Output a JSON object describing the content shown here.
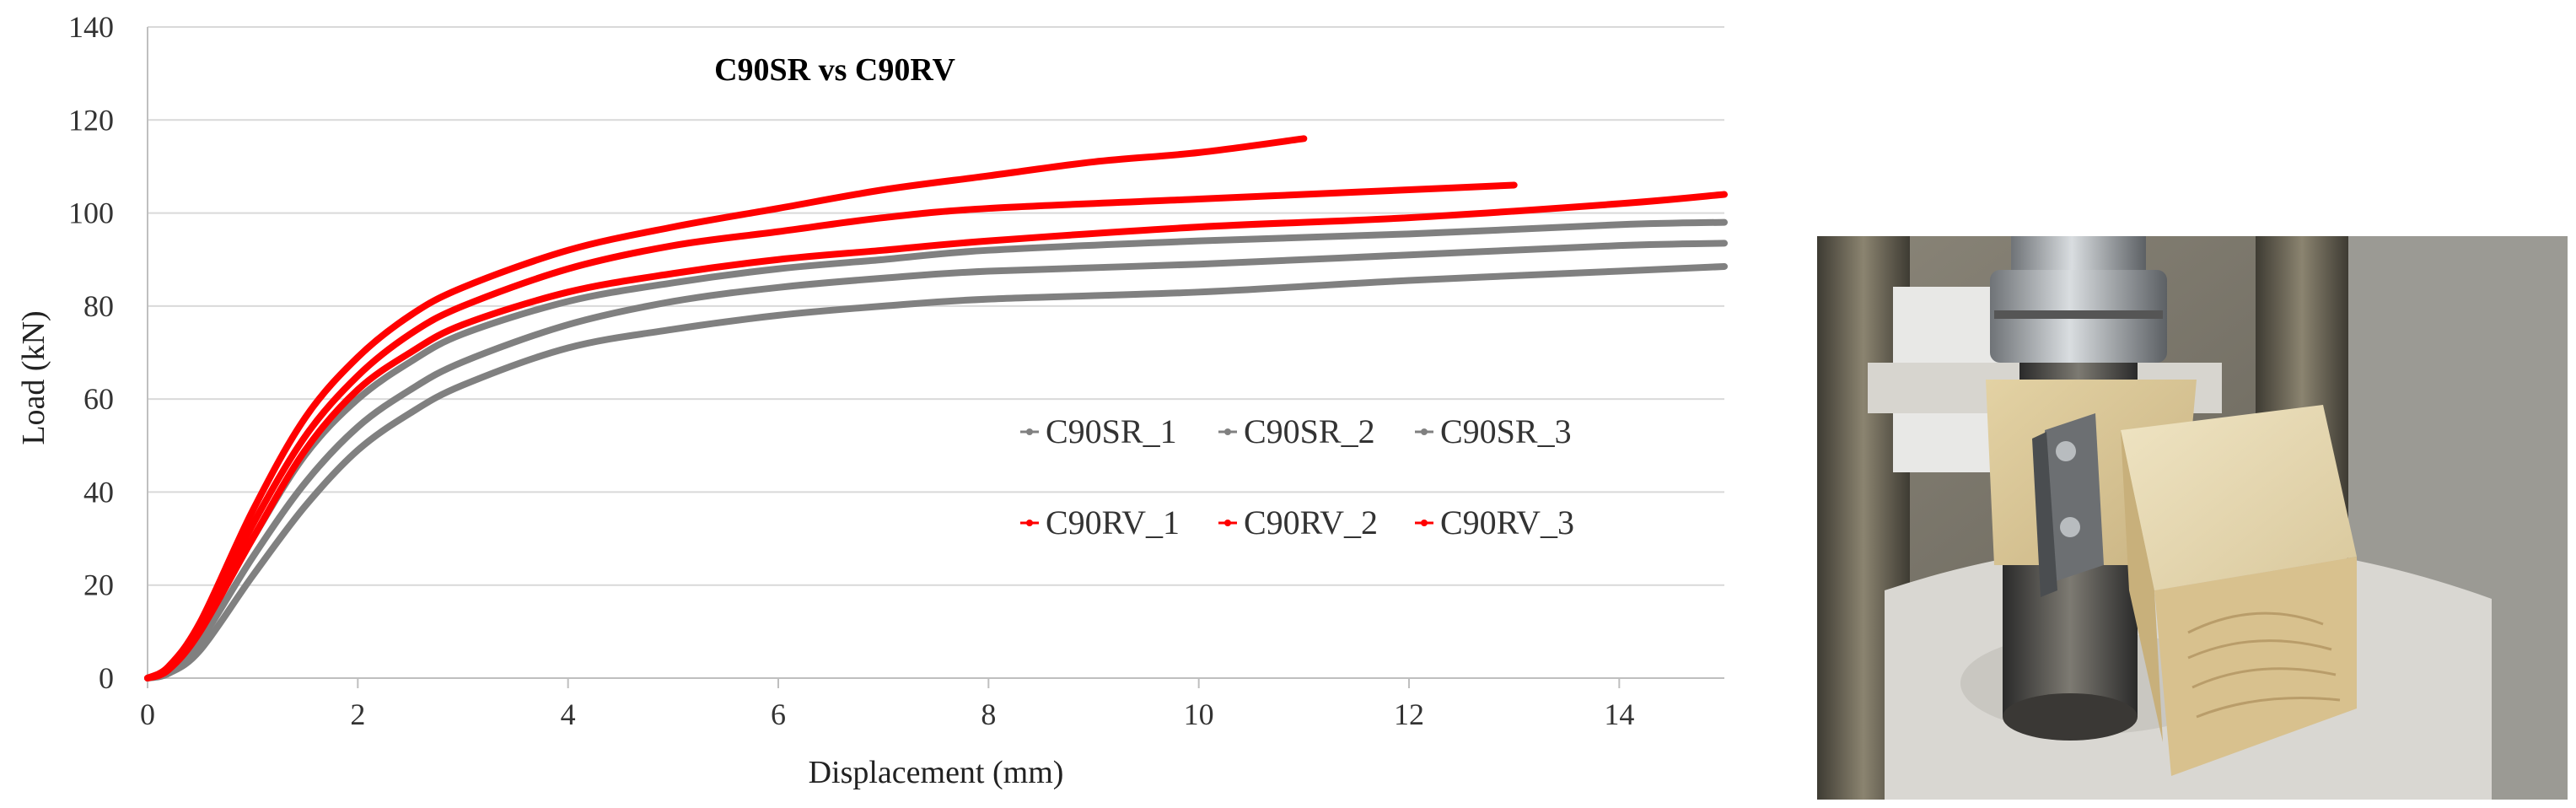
{
  "chart_data": {
    "type": "line",
    "title": "C90SR vs C90RV",
    "xlabel": "Displacement (mm)",
    "ylabel": "Load (kN)",
    "xlim": [
      0,
      15
    ],
    "ylim": [
      0,
      140
    ],
    "xticks": [
      0,
      2,
      4,
      6,
      8,
      10,
      12,
      14
    ],
    "yticks": [
      0,
      20,
      40,
      60,
      80,
      100,
      120,
      140
    ],
    "grid": "horizontal",
    "legend_position": "center-right",
    "colors": {
      "SR": "#808080",
      "RV": "#ff0000"
    },
    "series": [
      {
        "name": "C90SR_1",
        "color": "#808080",
        "x": [
          0,
          0.2,
          0.5,
          1.0,
          1.5,
          2.0,
          2.5,
          3.0,
          4.0,
          5.0,
          6.0,
          7.0,
          8.0,
          10.0,
          12.0,
          14.0,
          15.0
        ],
        "y": [
          0,
          2,
          10,
          30,
          48,
          60,
          68,
          74,
          81,
          85,
          88,
          90,
          92,
          94,
          95.5,
          97.5,
          98
        ]
      },
      {
        "name": "C90SR_2",
        "color": "#808080",
        "x": [
          0,
          0.2,
          0.5,
          1.0,
          1.5,
          2.0,
          2.5,
          3.0,
          4.0,
          5.0,
          6.0,
          7.0,
          8.0,
          10.0,
          12.0,
          14.0,
          15.0
        ],
        "y": [
          0,
          1.5,
          8,
          26,
          42,
          54,
          62,
          68,
          76,
          81,
          84,
          86,
          87.5,
          89,
          91,
          93,
          93.5
        ]
      },
      {
        "name": "C90SR_3",
        "color": "#808080",
        "x": [
          0,
          0.2,
          0.5,
          1.0,
          1.5,
          2.0,
          2.5,
          3.0,
          4.0,
          5.0,
          6.0,
          7.0,
          8.0,
          10.0,
          12.0,
          14.0,
          15.0
        ],
        "y": [
          0,
          1,
          6,
          22,
          37,
          49,
          57,
          63,
          71,
          75,
          78,
          80,
          81.5,
          83,
          85.5,
          87.5,
          88.5
        ]
      },
      {
        "name": "C90RV_1",
        "color": "#ff0000",
        "x": [
          0,
          0.2,
          0.5,
          1.0,
          1.5,
          2.0,
          2.5,
          3.0,
          4.0,
          5.0,
          6.0,
          7.0,
          8.0,
          9.0,
          10.0,
          11.0
        ],
        "y": [
          0,
          2.5,
          12,
          36,
          56,
          69,
          78,
          84,
          92,
          97,
          101,
          105,
          108,
          111,
          113,
          116
        ]
      },
      {
        "name": "C90RV_2",
        "color": "#ff0000",
        "x": [
          0,
          0.2,
          0.5,
          1.0,
          1.5,
          2.0,
          2.5,
          3.0,
          4.0,
          5.0,
          6.0,
          7.0,
          8.0,
          10.0,
          11.0,
          12.0,
          13.0
        ],
        "y": [
          0,
          2,
          11,
          33,
          52,
          65,
          74,
          80,
          88,
          93,
          96,
          99,
          101,
          103,
          104,
          105,
          106
        ]
      },
      {
        "name": "C90RV_3",
        "color": "#ff0000",
        "x": [
          0,
          0.2,
          0.5,
          1.0,
          1.5,
          2.0,
          2.5,
          3.0,
          4.0,
          5.0,
          6.0,
          7.0,
          8.0,
          10.0,
          12.0,
          14.0,
          15.0
        ],
        "y": [
          0,
          1.8,
          10,
          30,
          49,
          62,
          70,
          76,
          83,
          87,
          90,
          92,
          94,
          97,
          99,
          102,
          104
        ]
      }
    ]
  }
}
